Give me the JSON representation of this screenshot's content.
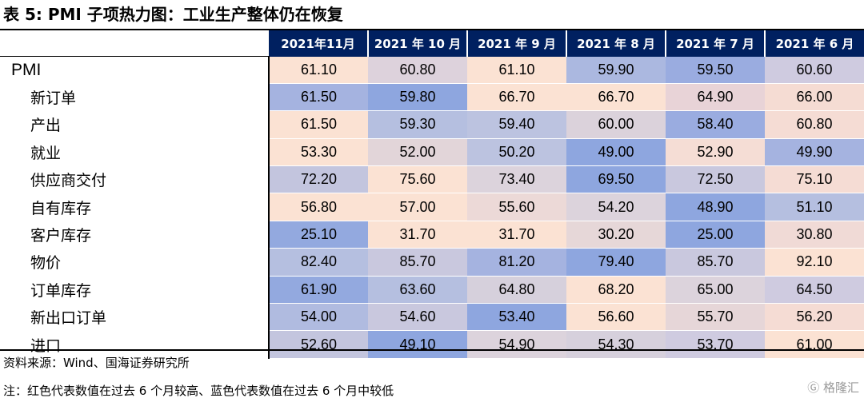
{
  "title": "表 5:  PMI 子项热力图：工业生产整体仍在恢复",
  "columns": [
    "2021年11月",
    "2021 年 10 月",
    "2021 年 9 月",
    "2021 年 8 月",
    "2021 年 7 月",
    "2021 年 6 月"
  ],
  "rows": [
    {
      "label": "PMI",
      "values": [
        "61.10",
        "60.80",
        "61.10",
        "59.90",
        "59.50",
        "60.60"
      ],
      "colors": [
        "#fbe2d3",
        "#ddd2dc",
        "#fbe2d3",
        "#abb8e0",
        "#9aace0",
        "#cfcbe0"
      ]
    },
    {
      "label": "新订单",
      "values": [
        "61.50",
        "59.80",
        "66.70",
        "66.70",
        "64.90",
        "66.00"
      ],
      "colors": [
        "#a5b3e0",
        "#8ea6df",
        "#fbe2d3",
        "#fbe2d3",
        "#e8d3d7",
        "#f5dcd3"
      ]
    },
    {
      "label": "产出",
      "values": [
        "61.50",
        "59.30",
        "59.40",
        "60.00",
        "58.40",
        "60.80"
      ],
      "colors": [
        "#fbe2d3",
        "#b5bfe0",
        "#bcc3e0",
        "#dbd2db",
        "#9aace0",
        "#f5dcd4"
      ]
    },
    {
      "label": "就业",
      "values": [
        "53.30",
        "52.00",
        "50.20",
        "49.00",
        "52.90",
        "49.90"
      ],
      "colors": [
        "#fbe2d3",
        "#e2d5d9",
        "#bcc3e0",
        "#8ea6df",
        "#f5ddd5",
        "#a5b3e0"
      ]
    },
    {
      "label": "供应商交付",
      "values": [
        "72.20",
        "75.60",
        "73.40",
        "69.50",
        "72.50",
        "75.10"
      ],
      "colors": [
        "#c3c5de",
        "#fbe2d3",
        "#dcd3dc",
        "#8ea6df",
        "#c9c8de",
        "#f5dcd4"
      ]
    },
    {
      "label": "自有库存",
      "values": [
        "56.80",
        "57.00",
        "55.60",
        "54.20",
        "48.90",
        "51.10"
      ],
      "colors": [
        "#fbe2d3",
        "#fbe2d3",
        "#ecd9d7",
        "#dcd3dc",
        "#8ea6df",
        "#b5bfe0"
      ]
    },
    {
      "label": "客户库存",
      "values": [
        "25.10",
        "31.70",
        "31.70",
        "30.20",
        "25.00",
        "30.80"
      ],
      "colors": [
        "#93a9df",
        "#fbe2d3",
        "#fbe2d3",
        "#e6d7d8",
        "#8ea6df",
        "#f0dad6"
      ]
    },
    {
      "label": "物价",
      "values": [
        "82.40",
        "85.70",
        "81.20",
        "79.40",
        "85.70",
        "92.10"
      ],
      "colors": [
        "#b5bfe0",
        "#c9c8de",
        "#a5b3e0",
        "#8ea6df",
        "#c9c8de",
        "#fbe2d3"
      ]
    },
    {
      "label": "订单库存",
      "values": [
        "61.90",
        "63.60",
        "64.80",
        "68.20",
        "65.00",
        "64.50"
      ],
      "colors": [
        "#93a9df",
        "#b5bfe0",
        "#d6d0dc",
        "#fbe2d3",
        "#dcd3dc",
        "#cfcbe0"
      ]
    },
    {
      "label": "新出口订单",
      "values": [
        "54.00",
        "54.60",
        "53.40",
        "56.60",
        "55.70",
        "56.20"
      ],
      "colors": [
        "#b0bbe0",
        "#c9c8de",
        "#8ea6df",
        "#fbe2d3",
        "#e6d6d8",
        "#f5dcd4"
      ]
    },
    {
      "label": "进口",
      "values": [
        "52.60",
        "49.10",
        "54.90",
        "54.30",
        "53.70",
        "61.00"
      ],
      "colors": [
        "#c3c5de",
        "#8ea6df",
        "#dcd3dc",
        "#d6d0dc",
        "#cfcbe0",
        "#fbe2d3"
      ]
    }
  ],
  "source": "资料来源：Wind、国海证券研究所",
  "note": "注：红色代表数值在过去 6 个月较高、蓝色代表数值在过去 6 个月中较低",
  "watermark": "格隆汇"
}
